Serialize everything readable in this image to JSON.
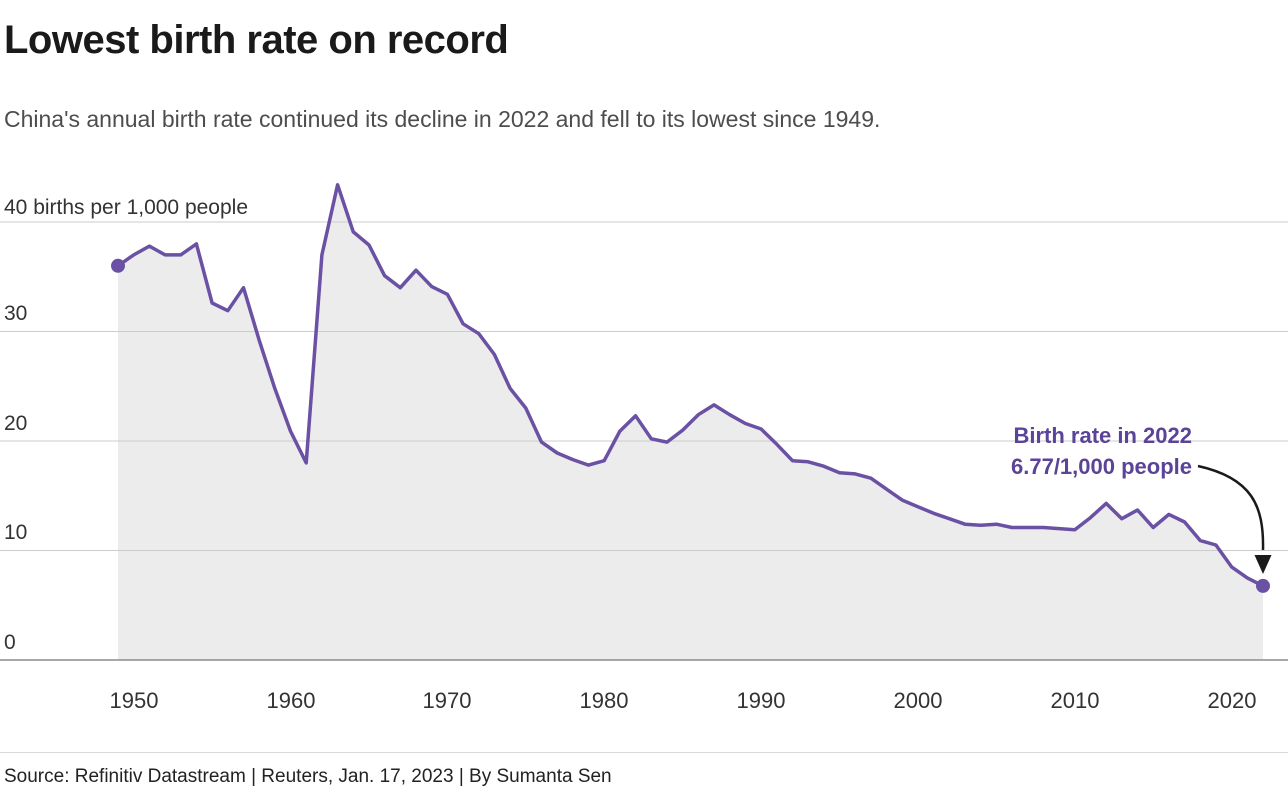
{
  "chart_data": {
    "type": "area",
    "title": "Lowest birth rate on record",
    "subtitle": "China's annual birth rate continued its decline in 2022 and fell to its lowest since 1949.",
    "unit_label": "40 births per 1,000 people",
    "years": [
      1949,
      1950,
      1951,
      1952,
      1953,
      1954,
      1955,
      1956,
      1957,
      1958,
      1959,
      1960,
      1961,
      1962,
      1963,
      1964,
      1965,
      1966,
      1967,
      1968,
      1969,
      1970,
      1971,
      1972,
      1973,
      1974,
      1975,
      1976,
      1977,
      1978,
      1979,
      1980,
      1981,
      1982,
      1983,
      1984,
      1985,
      1986,
      1987,
      1988,
      1989,
      1990,
      1991,
      1992,
      1993,
      1994,
      1995,
      1996,
      1997,
      1998,
      1999,
      2000,
      2001,
      2002,
      2003,
      2004,
      2005,
      2006,
      2007,
      2008,
      2009,
      2010,
      2011,
      2012,
      2013,
      2014,
      2015,
      2016,
      2017,
      2018,
      2019,
      2020,
      2021,
      2022
    ],
    "values": [
      36.0,
      37.0,
      37.8,
      37.0,
      37.0,
      38.0,
      32.6,
      31.9,
      34.0,
      29.2,
      24.8,
      20.9,
      18.0,
      37.0,
      43.4,
      39.1,
      37.9,
      35.1,
      34.0,
      35.6,
      34.1,
      33.4,
      30.7,
      29.8,
      27.9,
      24.8,
      23.0,
      19.9,
      18.9,
      18.3,
      17.8,
      18.2,
      20.9,
      22.3,
      20.2,
      19.9,
      21.0,
      22.4,
      23.3,
      22.4,
      21.6,
      21.1,
      19.7,
      18.2,
      18.1,
      17.7,
      17.1,
      17.0,
      16.6,
      15.6,
      14.6,
      14.0,
      13.4,
      12.9,
      12.4,
      12.3,
      12.4,
      12.1,
      12.1,
      12.1,
      12.0,
      11.9,
      13.0,
      14.3,
      12.9,
      13.7,
      12.1,
      13.3,
      12.6,
      10.9,
      10.5,
      8.5,
      7.5,
      6.77
    ],
    "ylabel": "births per 1,000 people",
    "xlabel": "",
    "ylim": [
      0,
      45
    ],
    "xlim": [
      1949,
      2022
    ],
    "grid": "horizontal",
    "legend": "none",
    "y_ticks": [
      "0",
      "10",
      "20",
      "30"
    ],
    "x_ticks": [
      "1950",
      "1960",
      "1970",
      "1980",
      "1990",
      "2000",
      "2010",
      "2020"
    ],
    "line_color": "#6a51a3",
    "fill_color": "#ececec",
    "grid_color": "#cccccc",
    "axis_color": "#8c8c8c",
    "annotation": {
      "line1": "Birth rate in 2022",
      "line2": "6.77/1,000 people",
      "color": "#5b4397",
      "last_value": 6.77,
      "last_year": 2022
    }
  },
  "footer": {
    "source": "Source: Refinitiv Datastream | Reuters, Jan. 17, 2023 | By Sumanta Sen"
  }
}
